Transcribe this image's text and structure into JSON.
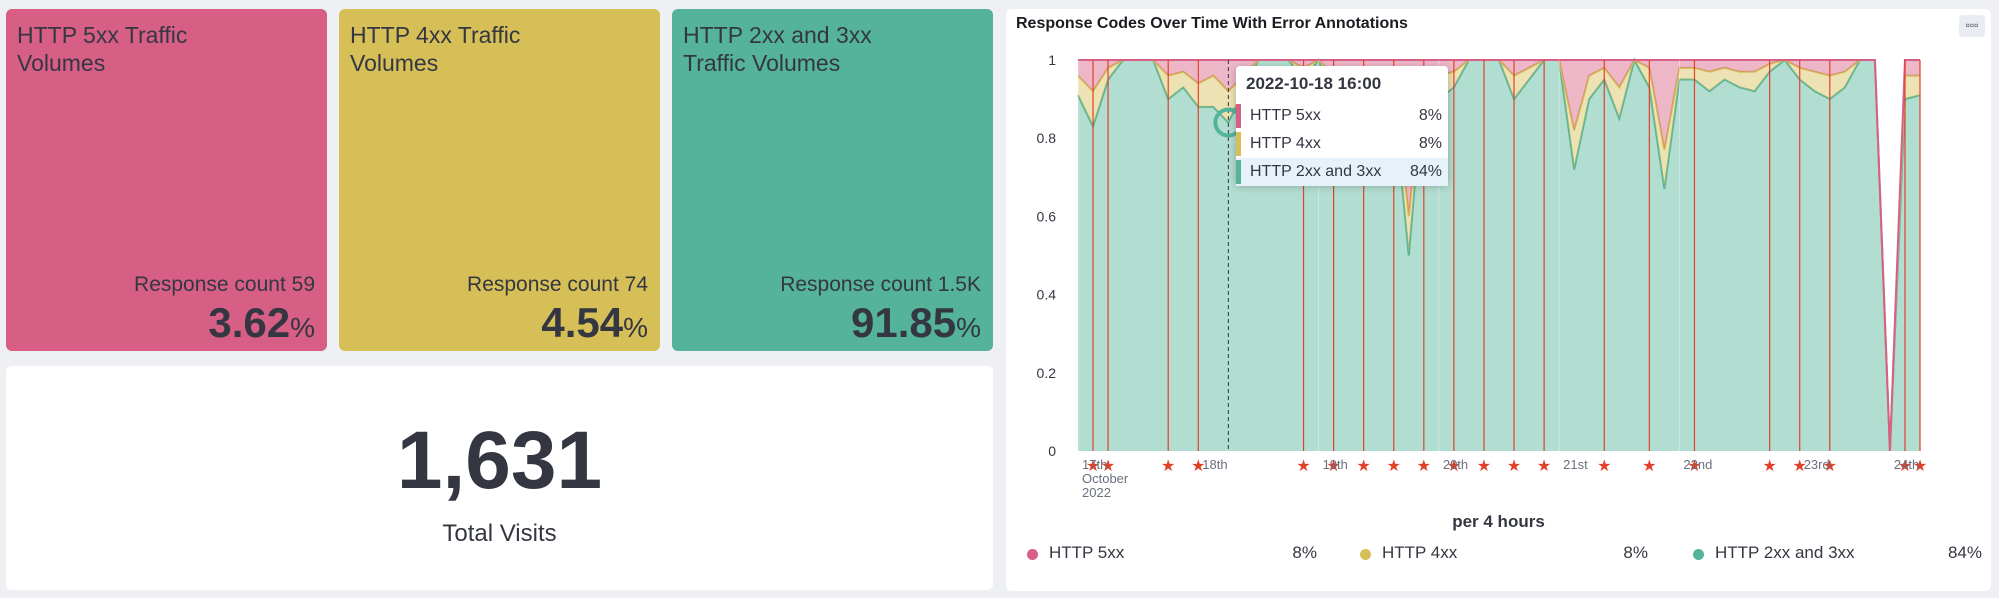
{
  "metrics": [
    {
      "title": "HTTP 5xx Traffic Volumes",
      "subtitle": "Response count 59",
      "value": "3.62",
      "unit": "%",
      "color": "#d75f86"
    },
    {
      "title": "HTTP 4xx Traffic Volumes",
      "subtitle": "Response count 74",
      "value": "4.54",
      "unit": "%",
      "color": "#d6bf57"
    },
    {
      "title": "HTTP 2xx and 3xx Traffic Volumes",
      "subtitle": "Response count 1.5K",
      "value": "91.85",
      "unit": "%",
      "color": "#54b399"
    }
  ],
  "visits": {
    "value": "1,631",
    "label": "Total Visits"
  },
  "chart_panel": {
    "title": "Response Codes Over Time With Error Annotations",
    "menu_icon": "ellipsis-icon",
    "tooltip": {
      "header": "2022-10-18 16:00",
      "rows": [
        {
          "name": "HTTP 5xx",
          "value": "8%",
          "color": "#d75f86"
        },
        {
          "name": "HTTP 4xx",
          "value": "8%",
          "color": "#d6bf57"
        },
        {
          "name": "HTTP 2xx and 3xx",
          "value": "84%",
          "color": "#54b399"
        }
      ]
    },
    "x_axis_title": "per 4 hours",
    "legend": [
      {
        "name": "HTTP 5xx",
        "value": "8%",
        "color": "#d75f86"
      },
      {
        "name": "HTTP 4xx",
        "value": "8%",
        "color": "#d6bf57"
      },
      {
        "name": "HTTP 2xx and 3xx",
        "value": "84%",
        "color": "#54b399"
      }
    ]
  },
  "chart_data": {
    "type": "area",
    "stacked": "percentage",
    "xlabel": "per 4 hours",
    "ylabel": "",
    "ylim": [
      0,
      1
    ],
    "y_ticks": [
      "0",
      "0.2",
      "0.4",
      "0.6",
      "0.8",
      "1"
    ],
    "x_tick_labels": [
      "17th October 2022",
      "18th",
      "19th",
      "20th",
      "21st",
      "22nd",
      "23rd",
      "24th"
    ],
    "x": [
      0,
      1,
      2,
      3,
      4,
      5,
      6,
      7,
      8,
      9,
      10,
      11,
      12,
      13,
      14,
      15,
      16,
      17,
      18,
      19,
      20,
      21,
      22,
      23,
      24,
      25,
      26,
      27,
      28,
      29,
      30,
      31,
      32,
      33,
      34,
      35,
      36,
      37,
      38,
      39,
      40,
      41,
      42,
      43,
      44,
      45,
      46,
      47,
      48,
      49,
      50,
      51,
      52,
      53,
      54,
      55,
      56
    ],
    "series": [
      {
        "name": "HTTP 2xx and 3xx",
        "color": "#54b399",
        "values": [
          0.91,
          0.83,
          0.95,
          1,
          1,
          1,
          0.9,
          0.93,
          0.88,
          0.88,
          0.84,
          0.92,
          1,
          1,
          1,
          0.95,
          1,
          0.9,
          0.95,
          0.9,
          0.85,
          0.9,
          0.5,
          0.95,
          0.9,
          0.93,
          1,
          1,
          1,
          0.9,
          0.95,
          1,
          1,
          0.72,
          0.9,
          0.95,
          0.85,
          1,
          0.93,
          0.67,
          0.95,
          0.95,
          0.92,
          0.95,
          0.93,
          0.92,
          0.97,
          1,
          0.95,
          0.92,
          0.9,
          0.93,
          1,
          1,
          0,
          0.9,
          0.91
        ]
      },
      {
        "name": "HTTP 4xx",
        "color": "#d6bf57",
        "values": [
          0.05,
          0.09,
          0.03,
          0,
          0,
          0,
          0.06,
          0.04,
          0.06,
          0.08,
          0.08,
          0.04,
          0,
          0,
          0,
          0.03,
          0,
          0.06,
          0.03,
          0.06,
          0.07,
          0.06,
          0.1,
          0.03,
          0.06,
          0.04,
          0,
          0,
          0,
          0.06,
          0.03,
          0,
          0,
          0.1,
          0.06,
          0.03,
          0.08,
          0,
          0.05,
          0.1,
          0.03,
          0.03,
          0.05,
          0.03,
          0.04,
          0.05,
          0.02,
          0,
          0.03,
          0.05,
          0.06,
          0.04,
          0,
          0,
          0,
          0.06,
          0.05
        ]
      },
      {
        "name": "HTTP 5xx",
        "color": "#d75f86",
        "values": [
          0.04,
          0.08,
          0.02,
          0,
          0,
          0,
          0.04,
          0.03,
          0.06,
          0.04,
          0.08,
          0.04,
          0,
          0,
          0,
          0.02,
          0,
          0.04,
          0.02,
          0.04,
          0.08,
          0.04,
          0.4,
          0.02,
          0.04,
          0.03,
          0,
          0,
          0,
          0.04,
          0.02,
          0,
          0,
          0.18,
          0.04,
          0.02,
          0.07,
          0,
          0.02,
          0.23,
          0.02,
          0.02,
          0.03,
          0.02,
          0.03,
          0.03,
          0.01,
          0,
          0.02,
          0.03,
          0.04,
          0.03,
          0,
          0,
          0,
          0.04,
          0.04
        ]
      }
    ],
    "annotations_x": [
      1,
      2,
      6,
      8,
      15,
      17,
      19,
      21,
      23,
      25,
      27,
      29,
      31,
      35,
      38,
      41,
      46,
      48,
      50,
      55,
      56
    ]
  }
}
